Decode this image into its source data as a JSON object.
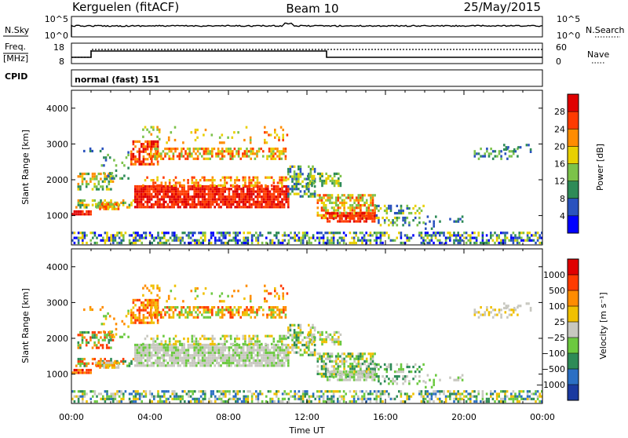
{
  "header": {
    "station": "Kerguelen (fitACF)",
    "beam": "Beam 10",
    "date": "25/May/2015"
  },
  "nsky_panel": {
    "label": "N.Sky",
    "right_label": "N.Search",
    "left_ticks": [
      "10^5",
      "10^0"
    ],
    "right_ticks": [
      "10^5",
      "10^0"
    ]
  },
  "freq_panel": {
    "label_line1": "Freq.",
    "label_line2": "[MHz]",
    "left_ticks": [
      "18",
      "8"
    ],
    "right_label": "Nave",
    "right_ticks": [
      "60",
      "0"
    ],
    "cpid_label": "CPID",
    "cpid_text": "normal (fast) 151"
  },
  "chart_data": [
    {
      "type": "heatmap",
      "title": "",
      "xlabel": "",
      "ylabel": "Slant Range [km]",
      "xlim": [
        0,
        24
      ],
      "ylim": [
        180,
        4500
      ],
      "y_ticks": [
        "1000",
        "2000",
        "3000",
        "4000"
      ],
      "colorbar": {
        "label": "Power [dB]",
        "ticks": [
          "4",
          "8",
          "12",
          "16",
          "20",
          "24",
          "28"
        ],
        "colors": [
          "#0000ff",
          "#2a52be",
          "#2e8b57",
          "#7cc24a",
          "#e8d000",
          "#ff8c00",
          "#ff3b00",
          "#e00000"
        ]
      }
    },
    {
      "type": "heatmap",
      "title": "",
      "xlabel": "Time UT",
      "ylabel": "Slant Range [km]",
      "xlim": [
        0,
        24
      ],
      "ylim": [
        180,
        4500
      ],
      "x_ticks": [
        "00:00",
        "04:00",
        "08:00",
        "12:00",
        "16:00",
        "20:00",
        "00:00"
      ],
      "y_ticks": [
        "1000",
        "2000",
        "3000",
        "4000"
      ],
      "colorbar": {
        "label": "Velocity [m s⁻¹]",
        "ticks": [
          "1000",
          "500",
          "100",
          "25",
          "−25",
          "−100",
          "−500",
          "−1000"
        ],
        "colors": [
          "#1a3aa0",
          "#2b6fc4",
          "#2e8b57",
          "#6cc940",
          "#c8c8c0",
          "#f0c000",
          "#ff8c00",
          "#ff3b00",
          "#e00000"
        ]
      }
    }
  ]
}
